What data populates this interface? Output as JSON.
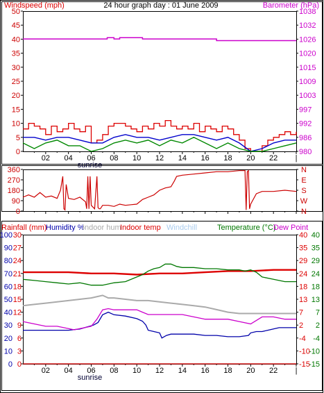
{
  "title": "24 hour graph day : 01 June 2009",
  "colors": {
    "windspeed": "#dd0000",
    "windavg": "#0000cc",
    "windgust": "#008800",
    "barometer": "#cc00cc",
    "direction": "#cc0000",
    "rainfall": "#dd0000",
    "humidity": "#0000aa",
    "indoorhum": "#aaaaaa",
    "indoortemp": "#dd0000",
    "windchill": "#aaccee",
    "temperature": "#007700",
    "dewpoint": "#cc00cc",
    "frame": "#000000"
  },
  "chart_data": [
    {
      "type": "line",
      "name": "wind-barometer",
      "left_label": "Windspeed (mph)",
      "right_label": "Barometer (hPa)",
      "x_ticks": [
        "02",
        "04",
        "06",
        "08",
        "10",
        "12",
        "14",
        "16",
        "18",
        "20",
        "22",
        "|"
      ],
      "sunrise_label": "sunrise",
      "sunrise_hour": 6.0,
      "xlim": [
        0,
        24
      ],
      "left_ticks": [
        "0",
        "5",
        "10",
        "15",
        "20",
        "25",
        "30",
        "35",
        "40",
        "45",
        "50"
      ],
      "ylim_left": [
        0,
        50
      ],
      "right_ticks": [
        "980",
        "986",
        "992",
        "997",
        "1003",
        "1009",
        "1015",
        "1020",
        "1026",
        "1032",
        "1038"
      ],
      "ylim_right": [
        980,
        1038
      ],
      "series": [
        {
          "role": "speed",
          "x": [
            0,
            0.5,
            1,
            1.5,
            2,
            2.5,
            3,
            3.5,
            4,
            4.5,
            5,
            5.5,
            6,
            6.5,
            7,
            7.5,
            8,
            8.5,
            9,
            9.5,
            10,
            10.5,
            11,
            11.5,
            12,
            12.5,
            13,
            13.5,
            14,
            14.5,
            15,
            15.5,
            16,
            16.5,
            17,
            17.5,
            18,
            18.5,
            19,
            19.5,
            20,
            20.5,
            21,
            21.5,
            22,
            22.5,
            23,
            23.5,
            24
          ],
          "values": [
            8,
            10,
            9,
            8,
            6,
            9,
            7,
            8,
            10,
            8,
            7,
            9,
            3,
            4,
            6,
            9,
            10,
            10,
            9,
            8,
            7,
            9,
            8,
            10,
            9,
            11,
            9,
            8,
            9,
            8,
            10,
            7,
            9,
            8,
            7,
            9,
            8,
            6,
            4,
            1,
            0,
            0,
            2,
            4,
            5,
            6,
            7,
            6,
            7
          ]
        },
        {
          "role": "average",
          "x": [
            0,
            1,
            2,
            3,
            4,
            5,
            6,
            7,
            8,
            9,
            10,
            11,
            12,
            13,
            14,
            15,
            16,
            17,
            18,
            19,
            20,
            21,
            22,
            23,
            24
          ],
          "values": [
            5,
            5,
            4,
            5,
            5,
            4,
            3,
            3,
            5,
            6,
            5,
            5,
            4,
            5,
            6,
            6,
            5,
            4,
            5,
            3,
            0,
            1,
            3,
            4,
            4
          ]
        },
        {
          "role": "gust",
          "x": [
            0,
            1,
            2,
            3,
            4,
            5,
            6,
            7,
            8,
            9,
            10,
            11,
            12,
            13,
            14,
            15,
            16,
            17,
            18,
            19,
            20,
            21,
            22,
            23,
            24
          ],
          "values": [
            3,
            1,
            3,
            4,
            2,
            2,
            0,
            1,
            3,
            4,
            3,
            4,
            2,
            4,
            3,
            5,
            3,
            1,
            3,
            1,
            0,
            0,
            1,
            2,
            3
          ]
        },
        {
          "role": "barometer",
          "x": [
            0,
            7.4,
            7.4,
            8.0,
            8.0,
            8.5,
            8.5,
            10.5,
            10.5,
            17.0,
            17.0,
            24
          ],
          "values": [
            1026.5,
            1026.5,
            1027.0,
            1027.0,
            1026.5,
            1026.5,
            1027.0,
            1027.0,
            1026.5,
            1026.5,
            1025.8,
            1025.8
          ]
        }
      ]
    },
    {
      "type": "line",
      "name": "wind-direction",
      "left_ticks": [
        "0",
        "90",
        "180",
        "270",
        "360"
      ],
      "ylim": [
        0,
        360
      ],
      "right_ticks": [
        "N",
        "W",
        "S",
        "E",
        "N"
      ],
      "x_ticks": [
        "02",
        "04",
        "06",
        "08",
        "10",
        "12",
        "14",
        "16",
        "18",
        "20",
        "22",
        "|"
      ],
      "xlim": [
        0,
        24
      ],
      "series": [
        {
          "role": "direction",
          "x": [
            0,
            0.5,
            1,
            1.5,
            2,
            2.5,
            3,
            3.3,
            3.5,
            3.6,
            3.7,
            3.8,
            4,
            4.5,
            5,
            5.5,
            5.6,
            5.7,
            5.8,
            5.9,
            6,
            6.3,
            6.5,
            6.6,
            6.7,
            6.8,
            7,
            7.5,
            8,
            8.5,
            9,
            9.5,
            10,
            10.5,
            11,
            11.5,
            12,
            12.5,
            13,
            13.3,
            13.5,
            14,
            15,
            16,
            17,
            18,
            19,
            19.5,
            19.6,
            19.7,
            19.8,
            19.9,
            20,
            20.5,
            21,
            22,
            23,
            24
          ],
          "values": [
            120,
            140,
            120,
            160,
            120,
            130,
            110,
            180,
            300,
            20,
            10,
            230,
            110,
            100,
            120,
            80,
            20,
            300,
            20,
            300,
            50,
            20,
            300,
            30,
            20,
            20,
            50,
            50,
            40,
            60,
            50,
            55,
            60,
            100,
            120,
            140,
            180,
            200,
            210,
            260,
            300,
            310,
            320,
            330,
            340,
            340,
            350,
            350,
            10,
            340,
            350,
            20,
            60,
            150,
            170,
            170,
            180,
            170
          ]
        }
      ]
    },
    {
      "type": "line",
      "name": "temperature-humidity",
      "labels": {
        "rainfall": "Rainfall (mm)",
        "humidity": "Humidity %",
        "indoorhum": "Indoor hum",
        "indoortemp": "Indoor temp",
        "windchill": "Windchill",
        "temperature": "Temperature (°C)",
        "dewpoint": "Dew Point"
      },
      "x_ticks": [
        "02",
        "04",
        "06",
        "08",
        "10",
        "12",
        "14",
        "16",
        "18",
        "20",
        "22",
        "|"
      ],
      "sunrise_label": "sunrise",
      "sunrise_hour": 6.0,
      "xlim": [
        0,
        24
      ],
      "humidity_ticks": [
        "0",
        "10",
        "20",
        "30",
        "40",
        "50",
        "60",
        "70",
        "80",
        "90",
        "100"
      ],
      "ylim_humidity": [
        0,
        100
      ],
      "rain_ticks": [
        "0",
        "3",
        "6",
        "9",
        "12",
        "15",
        "18",
        "21",
        "24",
        "27",
        "30"
      ],
      "ylim_rain": [
        0,
        30
      ],
      "temp_ticks_inner": [
        "-15",
        "-10",
        "-4",
        "2",
        "7",
        "13",
        "18",
        "24",
        "29",
        "35",
        "40"
      ],
      "temp_ticks_outer": [
        "-15",
        "-10",
        "-4",
        "2",
        "7",
        "13",
        "18",
        "24",
        "29",
        "35",
        "40"
      ],
      "ylim_temp": [
        -15,
        40
      ],
      "series": [
        {
          "role": "rainfall",
          "x": [
            0,
            24
          ],
          "values": [
            0,
            0
          ]
        },
        {
          "role": "humidity",
          "x": [
            0,
            2,
            4,
            5,
            5.8,
            6.2,
            6.6,
            7,
            7.5,
            8,
            9,
            10,
            10.5,
            10.8,
            11,
            11.5,
            12,
            12.2,
            12.6,
            13,
            14,
            15,
            16,
            17,
            18,
            19,
            19.8,
            20,
            20.5,
            21,
            21.5,
            22,
            22.5,
            23,
            24
          ],
          "values": [
            26,
            26,
            26,
            27,
            29,
            30,
            32,
            38,
            40,
            38,
            37,
            35,
            33,
            30,
            26,
            25,
            24,
            20,
            22,
            23,
            23,
            23,
            22,
            22,
            21,
            21,
            22,
            24,
            25,
            25,
            26,
            27,
            28,
            28,
            28
          ]
        },
        {
          "role": "dewpoint",
          "x": [
            0,
            1,
            2,
            3,
            4,
            4.5,
            5,
            5.5,
            6,
            6.5,
            7,
            7.5,
            8,
            9,
            10,
            10.5,
            11,
            12,
            13,
            14,
            15,
            16,
            17,
            18,
            19,
            20,
            21,
            22,
            23,
            24
          ],
          "values": [
            3,
            2,
            1,
            1,
            0,
            -0.5,
            0,
            0.5,
            1,
            4,
            8,
            8.5,
            8,
            8,
            8,
            7,
            6,
            6,
            6,
            6,
            5,
            4,
            4,
            4,
            3,
            2,
            5,
            5,
            4,
            4
          ]
        },
        {
          "role": "indoorhum",
          "x": [
            0,
            1,
            2,
            3,
            4,
            5,
            6,
            7,
            7.5,
            8,
            9,
            10,
            11,
            12,
            13,
            14,
            15,
            16,
            17,
            18,
            19,
            20,
            21,
            22,
            23,
            24
          ],
          "values": [
            45,
            46,
            47,
            48,
            49,
            50,
            51,
            53,
            51,
            51,
            50,
            49,
            49,
            48,
            47,
            46,
            45,
            44,
            42,
            40,
            39,
            39,
            39,
            39,
            39,
            39
          ]
        },
        {
          "role": "indoortemp",
          "x": [
            0,
            2,
            4,
            6,
            8,
            10,
            12,
            14,
            16,
            18,
            20,
            22,
            24
          ],
          "values": [
            24,
            24,
            24,
            23.5,
            23.5,
            23,
            23.5,
            23.5,
            24,
            24.5,
            24.5,
            25,
            25
          ]
        },
        {
          "role": "temperature",
          "x": [
            0,
            1,
            2,
            3,
            4,
            5,
            6,
            7,
            8,
            9,
            10,
            10.5,
            11,
            11.5,
            12,
            12.5,
            13,
            13.5,
            14,
            15,
            16,
            17,
            18,
            19,
            19.5,
            20,
            20.5,
            21,
            22,
            23,
            24
          ],
          "values": [
            21,
            20.5,
            20,
            19.5,
            19,
            19.5,
            18.5,
            18.5,
            19.5,
            20,
            22,
            23,
            24.5,
            25.5,
            26,
            27.5,
            27.5,
            26.5,
            26,
            26,
            25.5,
            25.5,
            25,
            25,
            24.5,
            25,
            24,
            22,
            21,
            20,
            20
          ]
        }
      ]
    }
  ]
}
